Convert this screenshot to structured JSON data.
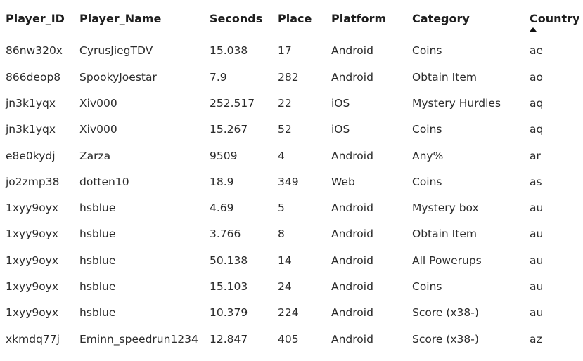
{
  "table": {
    "columns": [
      {
        "label": "Player_ID"
      },
      {
        "label": "Player_Name"
      },
      {
        "label": "Seconds"
      },
      {
        "label": "Place"
      },
      {
        "label": "Platform"
      },
      {
        "label": "Category"
      },
      {
        "label": "Country",
        "sort": "ascending",
        "sort_icon": "sort-ascending-icon"
      }
    ],
    "rows": [
      [
        "86nw320x",
        "CyrusJiegTDV",
        "15.038",
        "17",
        "Android",
        "Coins",
        "ae"
      ],
      [
        "866deop8",
        "SpookyJoestar",
        "7.9",
        "282",
        "Android",
        "Obtain Item",
        "ao"
      ],
      [
        "jn3k1yqx",
        "Xiv000",
        "252.517",
        "22",
        "iOS",
        "Mystery Hurdles",
        "aq"
      ],
      [
        "jn3k1yqx",
        "Xiv000",
        "15.267",
        "52",
        "iOS",
        "Coins",
        "aq"
      ],
      [
        "e8e0kydj",
        "Zarza",
        "9509",
        "4",
        "Android",
        "Any%",
        "ar"
      ],
      [
        "jo2zmp38",
        "dotten10",
        "18.9",
        "349",
        "Web",
        "Coins",
        "as"
      ],
      [
        "1xyy9oyx",
        "hsblue",
        "4.69",
        "5",
        "Android",
        "Mystery box",
        "au"
      ],
      [
        "1xyy9oyx",
        "hsblue",
        "3.766",
        "8",
        "Android",
        "Obtain Item",
        "au"
      ],
      [
        "1xyy9oyx",
        "hsblue",
        "50.138",
        "14",
        "Android",
        "All Powerups",
        "au"
      ],
      [
        "1xyy9oyx",
        "hsblue",
        "15.103",
        "24",
        "Android",
        "Coins",
        "au"
      ],
      [
        "1xyy9oyx",
        "hsblue",
        "10.379",
        "224",
        "Android",
        "Score (x38-)",
        "au"
      ],
      [
        "xkmdq77j",
        "Eminn_speedrun1234",
        "12.847",
        "405",
        "Android",
        "Score (x38-)",
        "az"
      ]
    ]
  }
}
